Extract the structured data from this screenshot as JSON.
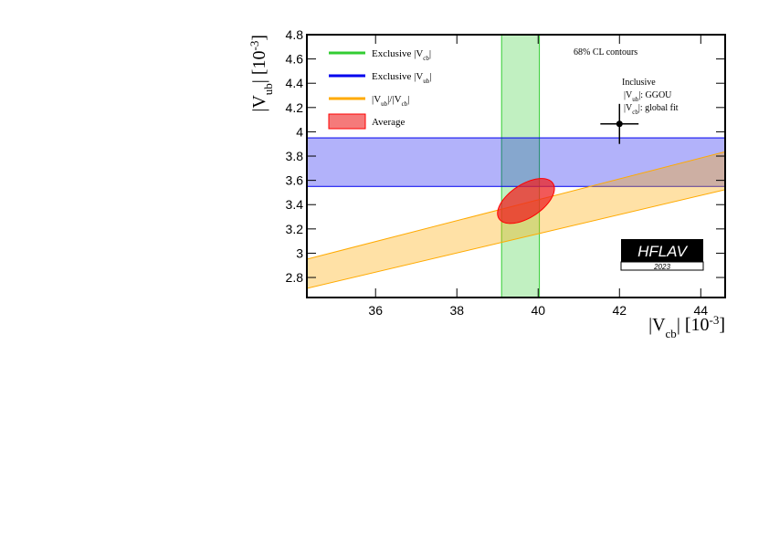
{
  "chart_data": {
    "type": "contour",
    "x_label": [
      "|V",
      "cb",
      "| [10",
      "-3",
      "]"
    ],
    "y_label": [
      "|V",
      "ub",
      "| [10",
      "-3",
      "]"
    ],
    "xlim": [
      34.31,
      44.6
    ],
    "ylim": [
      2.635,
      4.8
    ],
    "xticks": [
      36,
      38,
      40,
      42,
      44
    ],
    "yticks": [
      2.8,
      3,
      3.2,
      3.4,
      3.6,
      3.8,
      4,
      4.2,
      4.4,
      4.6,
      4.8
    ],
    "annotation": "68% CL contours",
    "series": [
      {
        "name": [
          "Exclusive |V",
          "cb",
          "|"
        ],
        "color": "#33cc33",
        "xrange": [
          39.1,
          40.03
        ]
      },
      {
        "name": [
          "Exclusive |V",
          "ub",
          "|"
        ],
        "color": "#0000ee",
        "yrange": [
          3.55,
          3.95
        ]
      },
      {
        "name": [
          "|V",
          "ub",
          "|/|V",
          "cb",
          "|"
        ],
        "color": "#ffaa00",
        "ratio": [
          0.079,
          0.086
        ]
      },
      {
        "name": [
          "Average"
        ],
        "color": "#ee2222",
        "x": 39.7,
        "y": 3.43,
        "x_err": 0.7,
        "y_err": 0.185,
        "corr": 0.55
      }
    ],
    "point": {
      "x": 42.0,
      "y": 4.065,
      "x_err": 0.47,
      "y_err": 0.165,
      "labels": [
        [
          "Inclusive"
        ],
        [
          "|V",
          "ub",
          "|: GGOU"
        ],
        [
          "|V",
          "cb",
          "|: global fit"
        ]
      ]
    },
    "logo": {
      "title": "HFLAV",
      "year": "2023"
    }
  }
}
